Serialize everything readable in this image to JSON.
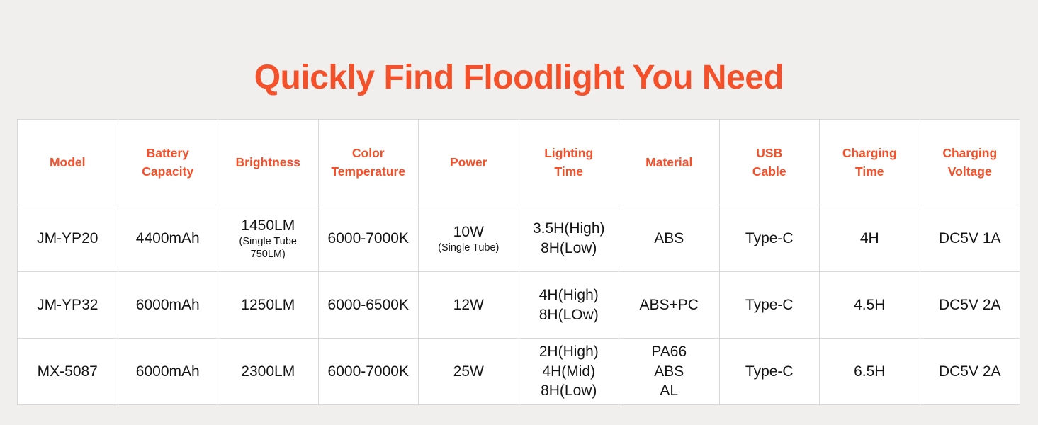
{
  "colors": {
    "accent": "#f4512b",
    "page_background": "#f0efed",
    "cell_background": "#ffffff",
    "grid_border": "#d8d8d8",
    "body_text": "#141414"
  },
  "chart_data": {
    "type": "table",
    "title": "Quickly Find Floodlight You Need",
    "legend_position": "none",
    "grid": "on",
    "columns": [
      "Model",
      "Battery\nCapacity",
      "Brightness",
      "Color\nTemperature",
      "Power",
      "Lighting\nTime",
      "Material",
      "USB\nCable",
      "Charging\nTime",
      "Charging\nVoltage"
    ],
    "rows": [
      {
        "cells": [
          {
            "main": "JM-YP20"
          },
          {
            "main": "4400mAh"
          },
          {
            "main": "1450LM",
            "sub": "(Single Tube 750LM)"
          },
          {
            "main": "6000-7000K"
          },
          {
            "main": "10W",
            "sub": "(Single Tube)"
          },
          {
            "main": "3.5H(High)\n8H(Low)"
          },
          {
            "main": "ABS"
          },
          {
            "main": "Type-C"
          },
          {
            "main": "4H"
          },
          {
            "main": "DC5V 1A"
          }
        ]
      },
      {
        "cells": [
          {
            "main": "JM-YP32"
          },
          {
            "main": "6000mAh"
          },
          {
            "main": "1250LM"
          },
          {
            "main": "6000-6500K"
          },
          {
            "main": "12W"
          },
          {
            "main": "4H(High)\n8H(LOw)"
          },
          {
            "main": "ABS+PC"
          },
          {
            "main": "Type-C"
          },
          {
            "main": "4.5H"
          },
          {
            "main": "DC5V 2A"
          }
        ]
      },
      {
        "cells": [
          {
            "main": "MX-5087"
          },
          {
            "main": "6000mAh"
          },
          {
            "main": "2300LM"
          },
          {
            "main": "6000-7000K"
          },
          {
            "main": "25W"
          },
          {
            "main": "2H(High)\n4H(Mid)\n8H(Low)"
          },
          {
            "main": "PA66\nABS\nAL"
          },
          {
            "main": "Type-C"
          },
          {
            "main": "6.5H"
          },
          {
            "main": "DC5V 2A"
          }
        ]
      }
    ]
  }
}
